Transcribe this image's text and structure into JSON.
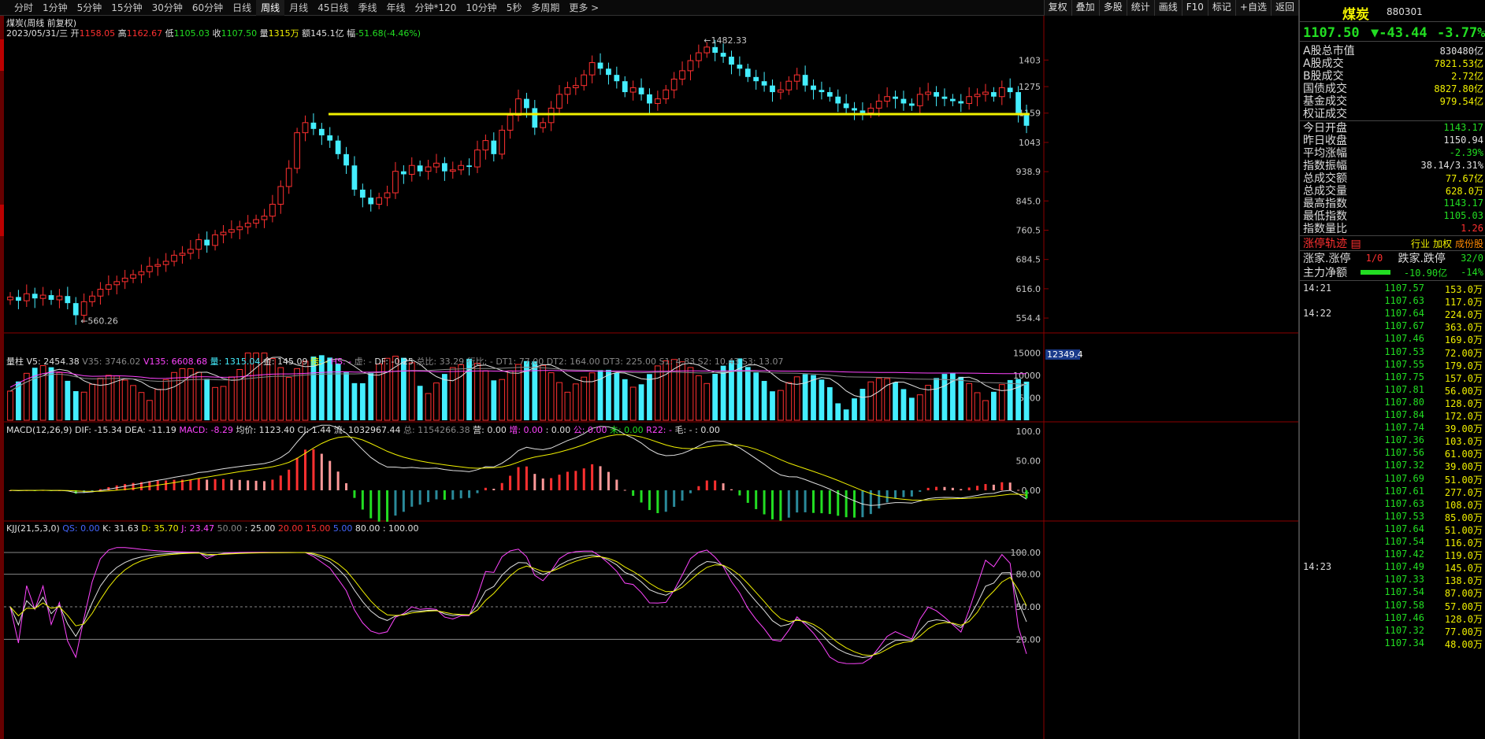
{
  "toolbar": {
    "periods": [
      "分时",
      "1分钟",
      "5分钟",
      "15分钟",
      "30分钟",
      "60分钟",
      "日线",
      "周线",
      "月线",
      "45日线",
      "季线",
      "年线",
      "分钟*120",
      "10分钟",
      "5秒",
      "多周期",
      "更多 >"
    ],
    "active_period": "周线",
    "tools": [
      "复权",
      "叠加",
      "多股",
      "统计",
      "画线",
      "F10",
      "标记",
      "+自选",
      "返回"
    ]
  },
  "chart_header": {
    "title": "煤炭(周线 前复权)",
    "date": "2023/05/31/三",
    "open_label": "开",
    "open": "1158.05",
    "high_label": "高",
    "high": "1162.67",
    "low_label": "低",
    "low": "1105.03",
    "close_label": "收",
    "close": "1107.50",
    "vol_label": "量",
    "vol": "1315万",
    "amount_label": "额",
    "amount": "145.1亿",
    "change_label": "幅",
    "change": "-51.68(-4.46%)"
  },
  "main_axis": {
    "ticks": [
      "1403",
      "1275",
      "1159",
      "1043",
      "938.9",
      "845.0",
      "760.5",
      "684.5",
      "616.0",
      "554.4"
    ],
    "high_annotation": "1482.33",
    "low_annotation": "560.26"
  },
  "volume_header": {
    "name": "量柱",
    "items": [
      {
        "k": "V5:",
        "v": "2454.38",
        "c": "white"
      },
      {
        "k": "V35:",
        "v": "3746.02",
        "c": "gray"
      },
      {
        "k": "V135:",
        "v": "6608.68",
        "c": "magenta"
      },
      {
        "k": "量:",
        "v": "1315.04",
        "c": "cyan"
      },
      {
        "k": "金:",
        "v": "145.09",
        "c": "white"
      },
      {
        "k": "倍:",
        "v": "-",
        "c": "yellow"
      },
      {
        "k": "HS:",
        "v": "-",
        "c": "magenta"
      },
      {
        "k": "虚:",
        "v": "-",
        "c": "gray"
      },
      {
        "k": "DF:",
        "v": "-0.25",
        "c": "white"
      },
      {
        "k": "总比:",
        "v": "33.29",
        "c": "gray"
      },
      {
        "k": "行比:",
        "v": "-",
        "c": "gray"
      },
      {
        "k": "DT1:",
        "v": "77.00",
        "c": "gray"
      },
      {
        "k": "DT2:",
        "v": "164.00",
        "c": "gray"
      },
      {
        "k": "DT3:",
        "v": "225.00",
        "c": "gray"
      },
      {
        "k": "S1:",
        "v": "4.83",
        "c": "gray"
      },
      {
        "k": "S2:",
        "v": "10.43",
        "c": "gray"
      },
      {
        "k": "S3:",
        "v": "13.07",
        "c": "gray"
      }
    ],
    "ticks": [
      "15000",
      "10000",
      "5000"
    ],
    "current_label": "12349.4"
  },
  "macd_header": {
    "name": "MACD(12,26,9)",
    "items": [
      {
        "k": "DIF:",
        "v": "-15.34",
        "c": "white"
      },
      {
        "k": "DEA:",
        "v": "-11.19",
        "c": "white"
      },
      {
        "k": "MACD:",
        "v": "-8.29",
        "c": "magenta"
      },
      {
        "k": "均价:",
        "v": "1123.40",
        "c": "white"
      },
      {
        "k": "CJ:",
        "v": "1.44",
        "c": "white"
      },
      {
        "k": "流:",
        "v": "1032967.44",
        "c": "white"
      },
      {
        "k": "总:",
        "v": "1154266.38",
        "c": "gray"
      },
      {
        "k": "营:",
        "v": "0.00",
        "c": "white"
      },
      {
        "k": "增:",
        "v": "0.00",
        "c": "magenta"
      },
      {
        "k": ":",
        "v": "0.00",
        "c": "white"
      },
      {
        "k": "公:",
        "v": "0.00",
        "c": "magenta"
      },
      {
        "k": "未:",
        "v": "0.00",
        "c": "green"
      },
      {
        "k": "R22:",
        "v": "-",
        "c": "magenta"
      },
      {
        "k": "毛:",
        "v": "-",
        "c": "white"
      },
      {
        "k": ":",
        "v": "0.00",
        "c": "white"
      }
    ],
    "ticks": [
      "100.0",
      "50.00",
      "0.00"
    ]
  },
  "kdj_header": {
    "name": "KJJ(21,5,3,0)",
    "items": [
      {
        "k": "QS:",
        "v": "0.00",
        "c": "blue"
      },
      {
        "k": "K:",
        "v": "31.63",
        "c": "white"
      },
      {
        "k": "D:",
        "v": "35.70",
        "c": "yellow"
      },
      {
        "k": "J:",
        "v": "23.47",
        "c": "magenta"
      },
      {
        "k": "",
        "v": "50.00",
        "c": "gray"
      },
      {
        "k": ":",
        "v": "25.00",
        "c": "white"
      },
      {
        "k": "",
        "v": "20.00",
        "c": "red"
      },
      {
        "k": "",
        "v": "15.00",
        "c": "red"
      },
      {
        "k": "",
        "v": "5.00",
        "c": "blue"
      },
      {
        "k": "",
        "v": "80.00",
        "c": "white"
      },
      {
        "k": ":",
        "v": "100.00",
        "c": "white"
      }
    ],
    "ticks": [
      "100.00",
      "80.00",
      "50.00",
      "20.00"
    ]
  },
  "right_panel": {
    "name": "煤炭",
    "code": "880301",
    "price": "1107.50",
    "change": "▼-43.44",
    "change_pct": "-3.77%",
    "stats": [
      {
        "label": "A股总市值",
        "value": "830480亿",
        "color": "#e0e0e0"
      },
      {
        "label": "A股成交",
        "value": "7821.53亿",
        "color": "#f0f000"
      },
      {
        "label": "B股成交",
        "value": "2.72亿",
        "color": "#f0f000"
      },
      {
        "label": "国债成交",
        "value": "8827.80亿",
        "color": "#f0f000"
      },
      {
        "label": "基金成交",
        "value": "979.54亿",
        "color": "#f0f000"
      },
      {
        "label": "权证成交",
        "value": "",
        "color": "#f0f000"
      },
      {
        "label": "今日开盘",
        "value": "1143.17",
        "color": "#22dd22"
      },
      {
        "label": "昨日收盘",
        "value": "1150.94",
        "color": "#e0e0e0"
      },
      {
        "label": "平均涨幅",
        "value": "-2.39%",
        "color": "#22dd22"
      },
      {
        "label": "指数振幅",
        "value": "38.14/3.31%",
        "color": "#e0e0e0"
      },
      {
        "label": "总成交额",
        "value": "77.67亿",
        "color": "#f0f000"
      },
      {
        "label": "总成交量",
        "value": "628.0万",
        "color": "#f0f000"
      },
      {
        "label": "最高指数",
        "value": "1143.17",
        "color": "#22dd22"
      },
      {
        "label": "最低指数",
        "value": "1105.03",
        "color": "#22dd22"
      },
      {
        "label": "指数量比",
        "value": "1.26",
        "color": "#ff3030"
      }
    ],
    "track_label": "涨停轨迹",
    "track_links": [
      "行业",
      "加权",
      "成份股"
    ],
    "zhang_label": "涨家.涨停",
    "zhang_value": "1/0",
    "die_label": "跌家.跌停",
    "die_value": "32/0",
    "flow_label": "主力净额",
    "flow_value": "-10.90亿",
    "flow_pct": "-14%",
    "ticks": [
      {
        "t": "14:21",
        "p": "1107.57",
        "v": "153.0万"
      },
      {
        "t": "",
        "p": "1107.63",
        "v": "117.0万"
      },
      {
        "t": "14:22",
        "p": "1107.64",
        "v": "224.0万"
      },
      {
        "t": "",
        "p": "1107.67",
        "v": "363.0万"
      },
      {
        "t": "",
        "p": "1107.46",
        "v": "169.0万"
      },
      {
        "t": "",
        "p": "1107.53",
        "v": "72.00万"
      },
      {
        "t": "",
        "p": "1107.55",
        "v": "179.0万"
      },
      {
        "t": "",
        "p": "1107.75",
        "v": "157.0万"
      },
      {
        "t": "",
        "p": "1107.81",
        "v": "56.00万"
      },
      {
        "t": "",
        "p": "1107.80",
        "v": "128.0万"
      },
      {
        "t": "",
        "p": "1107.84",
        "v": "172.0万"
      },
      {
        "t": "",
        "p": "1107.74",
        "v": "39.00万"
      },
      {
        "t": "",
        "p": "1107.36",
        "v": "103.0万"
      },
      {
        "t": "",
        "p": "1107.56",
        "v": "61.00万"
      },
      {
        "t": "",
        "p": "1107.32",
        "v": "39.00万"
      },
      {
        "t": "",
        "p": "1107.69",
        "v": "51.00万"
      },
      {
        "t": "",
        "p": "1107.61",
        "v": "277.0万"
      },
      {
        "t": "",
        "p": "1107.63",
        "v": "108.0万"
      },
      {
        "t": "",
        "p": "1107.53",
        "v": "85.00万"
      },
      {
        "t": "",
        "p": "1107.64",
        "v": "51.00万"
      },
      {
        "t": "",
        "p": "1107.54",
        "v": "116.0万"
      },
      {
        "t": "",
        "p": "1107.42",
        "v": "119.0万"
      },
      {
        "t": "14:23",
        "p": "1107.49",
        "v": "145.0万"
      },
      {
        "t": "",
        "p": "1107.33",
        "v": "138.0万"
      },
      {
        "t": "",
        "p": "1107.54",
        "v": "87.00万"
      },
      {
        "t": "",
        "p": "1107.58",
        "v": "57.00万"
      },
      {
        "t": "",
        "p": "1107.46",
        "v": "128.0万"
      },
      {
        "t": "",
        "p": "1107.32",
        "v": "77.00万"
      },
      {
        "t": "",
        "p": "1107.34",
        "v": "48.00万"
      }
    ]
  },
  "chart_data": {
    "type": "candlestick",
    "series_note": "weekly index, approx values read from chart",
    "closes": [
      598,
      590,
      605,
      595,
      602,
      592,
      600,
      585,
      560,
      588,
      600,
      615,
      625,
      632,
      640,
      648,
      655,
      668,
      672,
      680,
      695,
      700,
      710,
      735,
      720,
      748,
      755,
      762,
      770,
      780,
      790,
      800,
      835,
      890,
      950,
      1080,
      1120,
      1095,
      1070,
      1050,
      1000,
      960,
      880,
      855,
      835,
      855,
      870,
      940,
      930,
      960,
      940,
      955,
      968,
      940,
      945,
      960,
      955,
      1015,
      1050,
      1000,
      1090,
      1150,
      1220,
      1180,
      1100,
      1120,
      1180,
      1240,
      1270,
      1280,
      1330,
      1390,
      1360,
      1330,
      1300,
      1250,
      1270,
      1240,
      1200,
      1220,
      1260,
      1310,
      1350,
      1400,
      1440,
      1470,
      1440,
      1420,
      1380,
      1360,
      1320,
      1300,
      1280,
      1250,
      1260,
      1300,
      1330,
      1280,
      1260,
      1250,
      1230,
      1200,
      1180,
      1170,
      1160,
      1180,
      1210,
      1230,
      1220,
      1200,
      1190,
      1240,
      1250,
      1230,
      1220,
      1210,
      1200,
      1230,
      1240,
      1250,
      1230,
      1270,
      1250,
      1160,
      1107.5
    ],
    "trend_line": 1155,
    "volume_ref": {
      "v5": 2454.38,
      "v35": 3746.02,
      "v135": 6608.68
    },
    "macd_ref": {
      "dif": -15.34,
      "dea": -11.19,
      "macd": -8.29
    },
    "kdj_ref": {
      "k": 31.63,
      "d": 35.7,
      "j": 23.47
    }
  },
  "colors": {
    "up": "#ff3030",
    "down": "#44eeff",
    "trend": "#f0f000",
    "grid": "#8b0000"
  }
}
